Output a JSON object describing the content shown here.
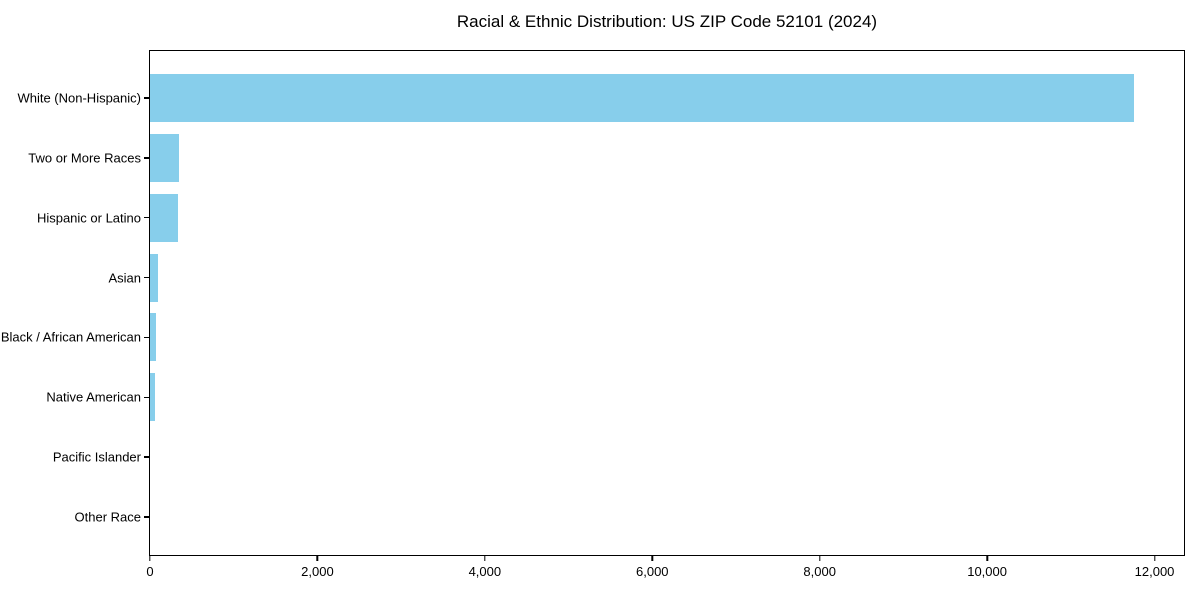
{
  "chart_data": {
    "type": "bar",
    "orientation": "horizontal",
    "title": "Racial & Ethnic Distribution: US ZIP Code 52101 (2024)",
    "categories": [
      "White (Non-Hispanic)",
      "Two or More Races",
      "Hispanic or Latino",
      "Asian",
      "Black / African American",
      "Native American",
      "Pacific Islander",
      "Other Race"
    ],
    "values": [
      11750,
      350,
      330,
      100,
      75,
      65,
      0,
      0
    ],
    "x_ticks": [
      {
        "value": 0,
        "label": "0"
      },
      {
        "value": 2000,
        "label": "2,000"
      },
      {
        "value": 4000,
        "label": "4,000"
      },
      {
        "value": 6000,
        "label": "6,000"
      },
      {
        "value": 8000,
        "label": "8,000"
      },
      {
        "value": 10000,
        "label": "10,000"
      },
      {
        "value": 12000,
        "label": "12,000"
      }
    ],
    "xlim": [
      0,
      12340
    ],
    "xlabel": "",
    "ylabel": "",
    "grid": false,
    "legend": null,
    "bar_color": "#87CEEB",
    "axis_color": "#000000",
    "background_color": "#ffffff"
  }
}
